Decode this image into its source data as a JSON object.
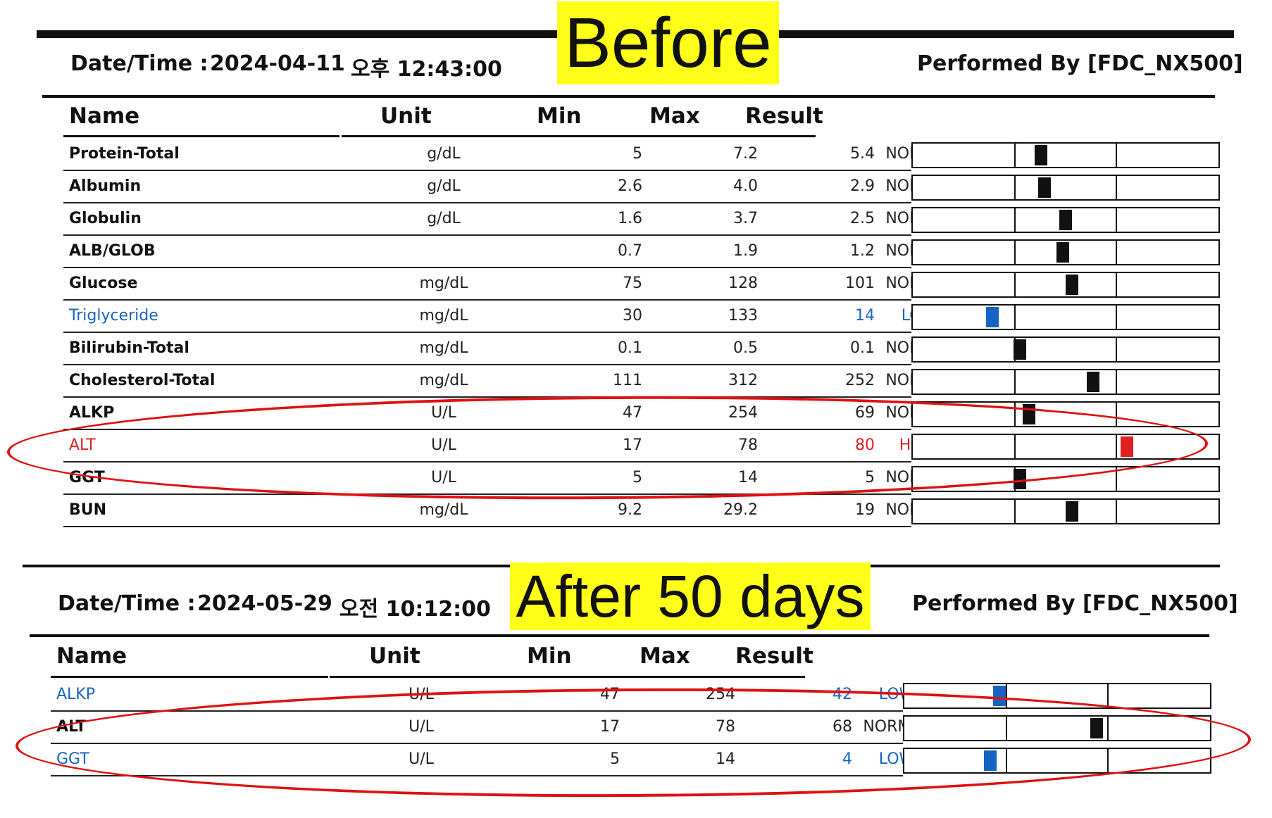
{
  "colors": {
    "normal": "#111111",
    "low": "#1565c0",
    "high": "#e02020",
    "marker_normal": "#111111",
    "marker_low": "#1565c0",
    "marker_high": "#e02020",
    "highlight": "#ffff1a",
    "annotation": "#e01010"
  },
  "before": {
    "banner": "Before",
    "datetime_label": "Date/Time :",
    "date": "2024-04-11",
    "time": "오후 12:43:00",
    "performed_by": "Performed By [FDC_NX500]",
    "columns": {
      "name": "Name",
      "unit": "Unit",
      "min": "Min",
      "max": "Max",
      "result": "Result"
    },
    "rows": [
      {
        "name": "Protein-Total",
        "unit": "g/dL",
        "min": "5",
        "max": "7.2",
        "result": "5.4",
        "status": "NORMAL",
        "flag": "normal",
        "level": 0.42
      },
      {
        "name": "Albumin",
        "unit": "g/dL",
        "min": "2.6",
        "max": "4.0",
        "result": "2.9",
        "status": "NORMAL",
        "flag": "normal",
        "level": 0.43
      },
      {
        "name": "Globulin",
        "unit": "g/dL",
        "min": "1.6",
        "max": "3.7",
        "result": "2.5",
        "status": "NORMAL",
        "flag": "normal",
        "level": 0.5
      },
      {
        "name": "ALB/GLOB",
        "unit": "",
        "min": "0.7",
        "max": "1.9",
        "result": "1.2",
        "status": "NORMAL",
        "flag": "normal",
        "level": 0.49
      },
      {
        "name": "Glucose",
        "unit": "mg/dL",
        "min": "75",
        "max": "128",
        "result": "101",
        "status": "NORMAL",
        "flag": "normal",
        "level": 0.52
      },
      {
        "name": "Triglyceride",
        "unit": "mg/dL",
        "min": "30",
        "max": "133",
        "result": "14",
        "status": "LOW",
        "flag": "low",
        "level": 0.26
      },
      {
        "name": "Bilirubin-Total",
        "unit": "mg/dL",
        "min": "0.1",
        "max": "0.5",
        "result": "0.1",
        "status": "NORMAL",
        "flag": "normal",
        "level": 0.35
      },
      {
        "name": "Cholesterol-Total",
        "unit": "mg/dL",
        "min": "111",
        "max": "312",
        "result": "252",
        "status": "NORMAL",
        "flag": "normal",
        "level": 0.59
      },
      {
        "name": "ALKP",
        "unit": "U/L",
        "min": "47",
        "max": "254",
        "result": "69",
        "status": "NORMAL",
        "flag": "normal",
        "level": 0.38
      },
      {
        "name": "ALT",
        "unit": "U/L",
        "min": "17",
        "max": "78",
        "result": "80",
        "status": "HIGH",
        "flag": "high",
        "level": 0.7
      },
      {
        "name": "GGT",
        "unit": "U/L",
        "min": "5",
        "max": "14",
        "result": "5",
        "status": "NORMAL",
        "flag": "normal",
        "level": 0.35
      },
      {
        "name": "BUN",
        "unit": "mg/dL",
        "min": "9.2",
        "max": "29.2",
        "result": "19",
        "status": "NORMAL",
        "flag": "normal",
        "level": 0.52
      }
    ]
  },
  "after": {
    "banner": "After 50 days",
    "datetime_label": "Date/Time :",
    "date": "2024-05-29",
    "time": "오전 10:12:00",
    "performed_by": "Performed By [FDC_NX500]",
    "columns": {
      "name": "Name",
      "unit": "Unit",
      "min": "Min",
      "max": "Max",
      "result": "Result"
    },
    "rows": [
      {
        "name": "ALKP",
        "unit": "U/L",
        "min": "47",
        "max": "254",
        "result": "42",
        "status": "LOW",
        "flag": "low",
        "level": 0.31
      },
      {
        "name": "ALT",
        "unit": "U/L",
        "min": "17",
        "max": "78",
        "result": "68",
        "status": "NORMAL",
        "flag": "normal",
        "level": 0.63
      },
      {
        "name": "GGT",
        "unit": "U/L",
        "min": "5",
        "max": "14",
        "result": "4",
        "status": "LOW",
        "flag": "low",
        "level": 0.28
      }
    ]
  }
}
